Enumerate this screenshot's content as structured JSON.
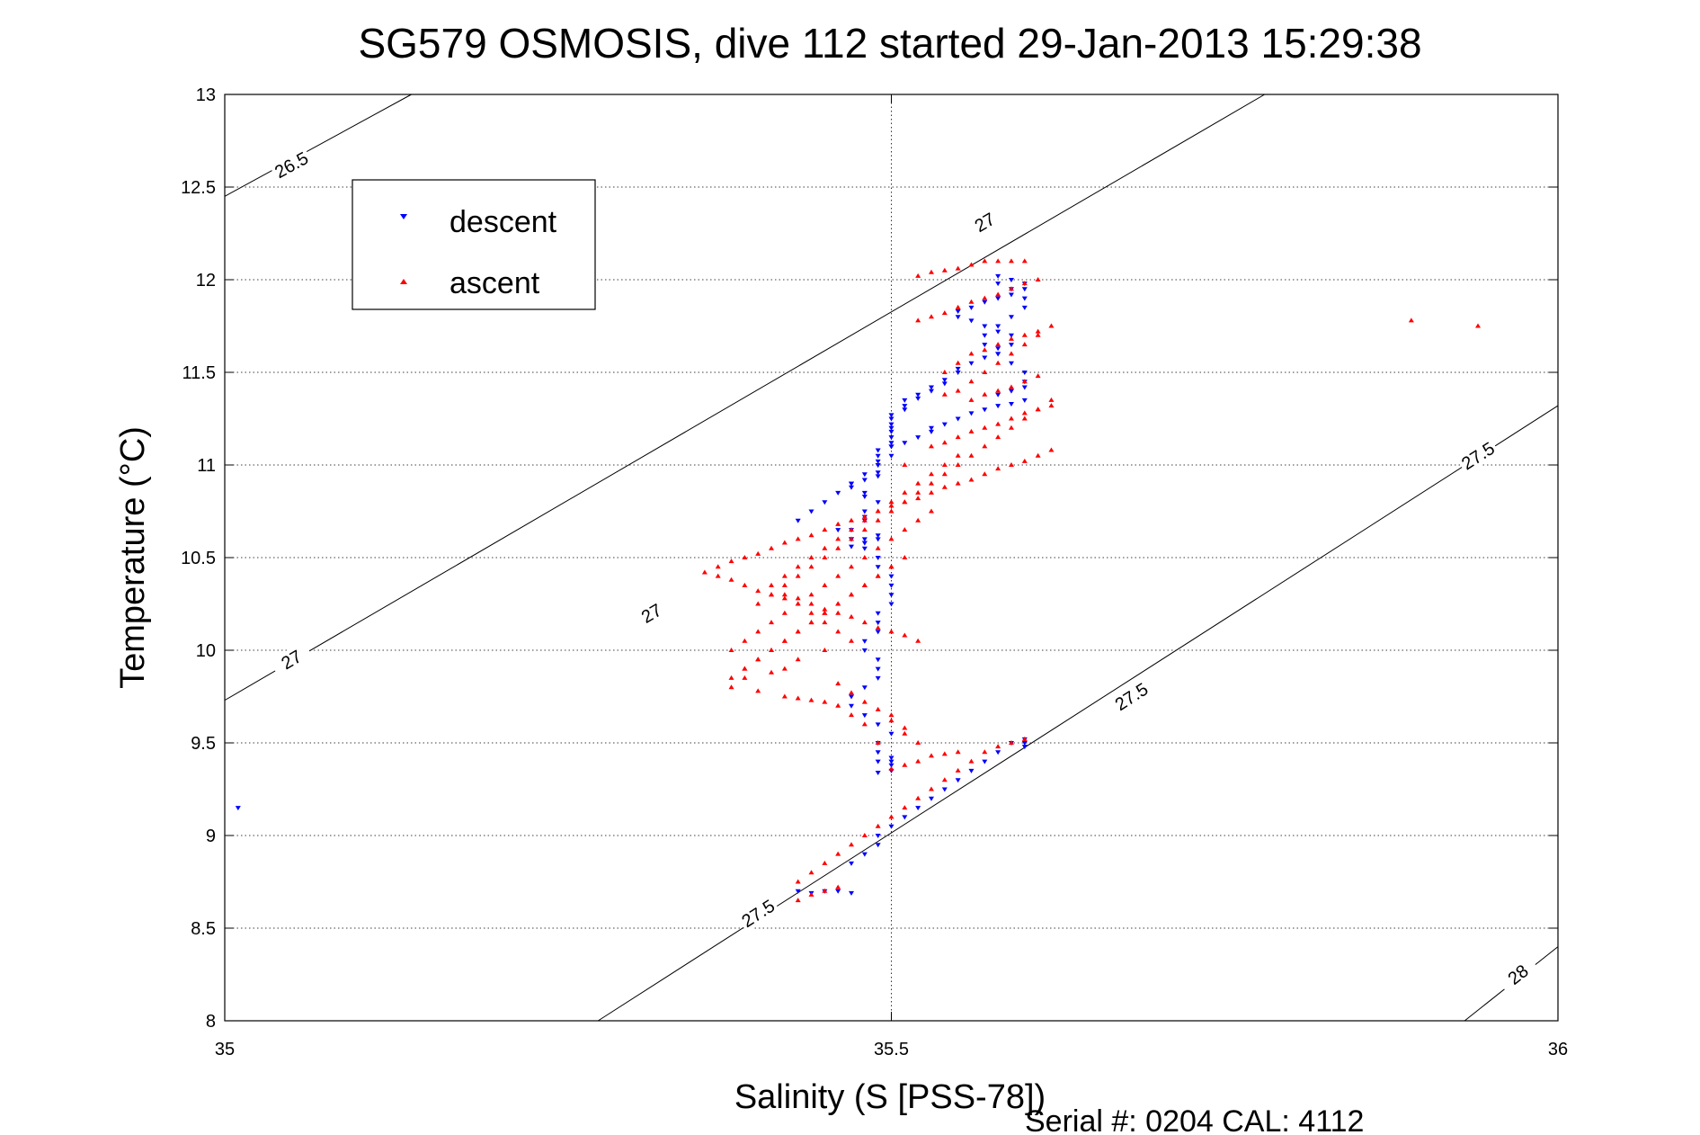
{
  "chart_data": {
    "type": "scatter",
    "title": "SG579 OSMOSIS, dive 112 started 29-Jan-2013 15:29:38",
    "xlabel": "Salinity (S [PSS-78])",
    "ylabel": "Temperature (°C)",
    "xlim": [
      35,
      36
    ],
    "ylim": [
      8,
      13
    ],
    "xticks": [
      35,
      35.5,
      36
    ],
    "xtick_labels": [
      "35",
      "35.5",
      "36"
    ],
    "yticks": [
      8,
      8.5,
      9,
      9.5,
      10,
      10.5,
      11,
      11.5,
      12,
      12.5,
      13
    ],
    "ytick_labels": [
      "8",
      "8.5",
      "9",
      "9.5",
      "10",
      "10.5",
      "11",
      "11.5",
      "12",
      "12.5",
      "13"
    ],
    "grid": true,
    "legend_position": "top-left",
    "footer": "Serial #: 0204  CAL: 4112",
    "isopycnals": [
      {
        "label": "26.5",
        "points": [
          [
            35,
            12.45
          ],
          [
            35.14,
            13
          ]
        ],
        "label_at": [
          [
            35.05,
            12.62
          ]
        ]
      },
      {
        "label": "27",
        "points": [
          [
            35,
            9.73
          ],
          [
            35.78,
            13
          ]
        ],
        "label_at": [
          [
            35.32,
            10.2
          ],
          [
            35.57,
            12.31
          ],
          [
            35.05,
            9.95
          ]
        ]
      },
      {
        "label": "27.5",
        "points": [
          [
            35.28,
            8
          ],
          [
            36,
            11.32
          ]
        ],
        "label_at": [
          [
            35.4,
            8.58
          ],
          [
            35.68,
            9.75
          ],
          [
            35.94,
            11.05
          ]
        ]
      },
      {
        "label": "28",
        "points": [
          [
            35.93,
            8
          ],
          [
            36,
            8.4
          ]
        ],
        "label_at": [
          [
            35.97,
            8.25
          ]
        ]
      }
    ],
    "series": [
      {
        "name": "descent",
        "color": "#0000ff",
        "marker": "triangle-down",
        "x": [
          35.01,
          35.43,
          35.44,
          35.45,
          35.46,
          35.47,
          35.47,
          35.48,
          35.49,
          35.49,
          35.5,
          35.51,
          35.52,
          35.53,
          35.54,
          35.55,
          35.56,
          35.57,
          35.58,
          35.59,
          35.6,
          35.6,
          35.6,
          35.5,
          35.5,
          35.5,
          35.5,
          35.49,
          35.49,
          35.49,
          35.49,
          35.5,
          35.49,
          35.48,
          35.47,
          35.47,
          35.48,
          35.49,
          35.49,
          35.49,
          35.48,
          35.48,
          35.49,
          35.49,
          35.49,
          35.5,
          35.5,
          35.5,
          35.5,
          35.49,
          35.49,
          35.48,
          35.48,
          35.49,
          35.49,
          35.48,
          35.48,
          35.47,
          35.47,
          35.47,
          35.48,
          35.48,
          35.48,
          35.49,
          35.48,
          35.48,
          35.47,
          35.47,
          35.48,
          35.49,
          35.49,
          35.49,
          35.49,
          35.49,
          35.49,
          35.5,
          35.5,
          35.5,
          35.5,
          35.5,
          35.5,
          35.5,
          35.5,
          35.51,
          35.51,
          35.51,
          35.52,
          35.52,
          35.53,
          35.53,
          35.54,
          35.54,
          35.55,
          35.55,
          35.56,
          35.57,
          35.58,
          35.58,
          35.59,
          35.59,
          35.58,
          35.57,
          35.56,
          35.55,
          35.55,
          35.56,
          35.57,
          35.58,
          35.59,
          35.6,
          35.6,
          35.59,
          35.58,
          35.58,
          35.59,
          35.6,
          35.6,
          35.59,
          35.58,
          35.57,
          35.57,
          35.58,
          35.59,
          35.6,
          35.6,
          35.6,
          35.59,
          35.58,
          35.6,
          35.59,
          35.58,
          35.57,
          35.56,
          35.55,
          35.54,
          35.53,
          35.53,
          35.52,
          35.51,
          35.5,
          35.5,
          35.49,
          35.48,
          35.47,
          35.46,
          35.45,
          35.44,
          35.43,
          35.46,
          35.47
        ],
        "y": [
          9.15,
          8.7,
          8.69,
          8.7,
          8.7,
          8.69,
          8.85,
          8.9,
          8.95,
          9.0,
          9.05,
          9.1,
          9.15,
          9.2,
          9.25,
          9.3,
          9.35,
          9.4,
          9.45,
          9.5,
          9.52,
          9.5,
          9.48,
          9.42,
          9.4,
          9.38,
          9.35,
          9.34,
          9.4,
          9.45,
          9.5,
          9.55,
          9.6,
          9.65,
          9.7,
          9.75,
          9.8,
          9.85,
          9.9,
          9.95,
          10.0,
          10.05,
          10.1,
          10.15,
          10.2,
          10.25,
          10.3,
          10.35,
          10.4,
          10.45,
          10.5,
          10.55,
          10.58,
          10.6,
          10.62,
          10.6,
          10.58,
          10.56,
          10.6,
          10.65,
          10.7,
          10.72,
          10.75,
          10.8,
          10.83,
          10.85,
          10.88,
          10.9,
          10.92,
          10.94,
          10.96,
          11.0,
          11.02,
          11.05,
          11.08,
          11.1,
          11.12,
          11.15,
          11.18,
          11.2,
          11.22,
          11.25,
          11.27,
          11.3,
          11.32,
          11.35,
          11.36,
          11.38,
          11.4,
          11.42,
          11.44,
          11.46,
          11.5,
          11.52,
          11.55,
          11.58,
          11.6,
          11.63,
          11.65,
          11.7,
          11.72,
          11.75,
          11.78,
          11.8,
          11.83,
          11.85,
          11.88,
          11.9,
          11.92,
          11.95,
          11.98,
          12.0,
          12.02,
          11.98,
          11.95,
          11.9,
          11.85,
          11.8,
          11.75,
          11.7,
          11.65,
          11.6,
          11.55,
          11.5,
          11.45,
          11.42,
          11.4,
          11.38,
          11.35,
          11.33,
          11.32,
          11.3,
          11.28,
          11.25,
          11.22,
          11.2,
          11.18,
          11.15,
          11.12,
          11.1,
          11.05,
          11.0,
          10.95,
          10.9,
          10.85,
          10.8,
          10.75,
          10.7,
          10.65,
          10.6
        ]
      },
      {
        "name": "ascent",
        "color": "#ff0000",
        "marker": "triangle-up",
        "x": [
          35.89,
          35.94,
          35.43,
          35.44,
          35.45,
          35.46,
          35.43,
          35.44,
          35.45,
          35.46,
          35.47,
          35.48,
          35.49,
          35.5,
          35.51,
          35.52,
          35.53,
          35.54,
          35.55,
          35.56,
          35.57,
          35.58,
          35.59,
          35.6,
          35.55,
          35.54,
          35.53,
          35.52,
          35.51,
          35.5,
          35.49,
          35.48,
          35.47,
          35.46,
          35.45,
          35.44,
          35.43,
          35.42,
          35.4,
          35.38,
          35.39,
          35.41,
          35.42,
          35.43,
          35.45,
          35.46,
          35.47,
          35.48,
          35.49,
          35.5,
          35.5,
          35.51,
          35.51,
          35.52,
          35.47,
          35.46,
          35.45,
          35.44,
          35.43,
          35.42,
          35.41,
          35.4,
          35.39,
          35.38,
          35.37,
          35.36,
          35.37,
          35.38,
          35.39,
          35.4,
          35.41,
          35.42,
          35.43,
          35.44,
          35.45,
          35.46,
          35.47,
          35.48,
          35.49,
          35.5,
          35.51,
          35.52,
          35.53,
          35.54,
          35.55,
          35.56,
          35.57,
          35.58,
          35.59,
          35.6,
          35.61,
          35.62,
          35.41,
          35.42,
          35.43,
          35.44,
          35.45,
          35.46,
          35.47,
          35.48,
          35.49,
          35.5,
          35.51,
          35.52,
          35.53,
          35.54,
          35.55,
          35.56,
          35.57,
          35.58,
          35.59,
          35.6,
          35.61,
          35.62,
          35.42,
          35.43,
          35.44,
          35.45,
          35.46,
          35.47,
          35.48,
          35.49,
          35.5,
          35.51,
          35.52,
          35.53,
          35.54,
          35.55,
          35.56,
          35.57,
          35.58,
          35.59,
          35.6,
          35.61,
          35.38,
          35.39,
          35.4,
          35.41,
          35.42,
          35.43,
          35.44,
          35.45,
          35.46,
          35.47,
          35.48,
          35.49,
          35.5,
          35.51,
          35.52,
          35.53,
          35.54,
          35.55,
          35.56,
          35.57,
          35.58,
          35.59,
          35.6,
          35.61,
          35.62,
          35.39,
          35.4,
          35.41,
          35.42,
          35.43,
          35.44,
          35.45,
          35.46,
          35.47,
          35.48,
          35.49,
          35.5,
          35.51,
          35.52,
          35.53,
          35.54,
          35.55,
          35.56,
          35.57,
          35.58,
          35.59,
          35.6,
          35.61,
          35.38,
          35.39,
          35.4,
          35.41,
          35.42,
          35.43,
          35.44,
          35.45,
          35.46,
          35.47,
          35.48,
          35.49,
          35.5,
          35.51,
          35.52,
          35.53,
          35.54,
          35.55,
          35.56,
          35.57,
          35.58,
          35.59,
          35.6,
          35.4,
          35.41,
          35.42,
          35.43,
          35.44,
          35.45,
          35.46,
          35.47,
          35.48,
          35.49,
          35.5,
          35.51,
          35.52,
          35.53,
          35.54,
          35.55,
          35.56,
          35.57,
          35.58,
          35.59,
          35.6,
          35.61,
          35.62,
          35.54,
          35.55,
          35.56,
          35.57,
          35.58,
          35.59,
          35.6,
          35.61
        ],
        "y": [
          11.78,
          11.75,
          8.65,
          8.68,
          8.7,
          8.72,
          8.75,
          8.8,
          8.85,
          8.9,
          8.95,
          9.0,
          9.05,
          9.1,
          9.15,
          9.2,
          9.25,
          9.3,
          9.35,
          9.4,
          9.45,
          9.48,
          9.5,
          9.52,
          9.45,
          9.44,
          9.43,
          9.4,
          9.38,
          9.36,
          9.5,
          9.6,
          9.65,
          9.7,
          9.72,
          9.73,
          9.74,
          9.75,
          9.78,
          9.8,
          9.85,
          9.88,
          9.9,
          9.95,
          10.0,
          9.82,
          9.77,
          9.72,
          9.68,
          9.65,
          9.62,
          9.58,
          9.55,
          9.5,
          10.05,
          10.1,
          10.15,
          10.2,
          10.25,
          10.28,
          10.3,
          10.32,
          10.35,
          10.38,
          10.4,
          10.42,
          10.45,
          10.48,
          10.5,
          10.52,
          10.55,
          10.58,
          10.6,
          10.62,
          10.65,
          10.68,
          10.7,
          10.72,
          10.75,
          10.78,
          10.8,
          10.82,
          10.85,
          10.88,
          10.9,
          10.92,
          10.95,
          10.98,
          11.0,
          11.02,
          11.05,
          11.08,
          10.35,
          10.3,
          10.28,
          10.25,
          10.22,
          10.2,
          10.18,
          10.15,
          10.12,
          10.1,
          10.08,
          10.05,
          11.1,
          11.12,
          11.15,
          11.18,
          11.2,
          11.22,
          11.25,
          11.28,
          11.3,
          11.32,
          10.4,
          10.45,
          10.5,
          10.55,
          10.6,
          10.65,
          10.7,
          10.75,
          10.8,
          10.85,
          10.9,
          10.95,
          11.0,
          11.05,
          11.35,
          11.38,
          11.4,
          11.42,
          11.45,
          11.48,
          10.0,
          10.05,
          10.1,
          10.15,
          10.2,
          10.25,
          10.3,
          10.35,
          10.4,
          10.45,
          10.5,
          10.55,
          10.6,
          10.65,
          10.7,
          10.75,
          11.5,
          11.55,
          11.6,
          11.62,
          11.65,
          11.68,
          11.7,
          11.72,
          11.75,
          9.9,
          9.95,
          10.0,
          10.05,
          10.1,
          10.15,
          10.2,
          10.25,
          10.3,
          10.35,
          10.4,
          10.45,
          10.5,
          11.78,
          11.8,
          11.82,
          11.85,
          11.88,
          11.9,
          11.92,
          11.95,
          11.98,
          12.0,
          9.85,
          9.9,
          9.95,
          10.0,
          10.05,
          10.1,
          10.15,
          10.2,
          10.25,
          10.3,
          10.35,
          10.4,
          10.45,
          11.0,
          12.02,
          12.04,
          12.05,
          12.06,
          12.08,
          12.1,
          12.1,
          12.1,
          12.1,
          10.25,
          10.3,
          10.35,
          10.4,
          10.45,
          10.5,
          10.55,
          10.6,
          10.65,
          10.7,
          10.75,
          10.8,
          10.85,
          10.9,
          10.95,
          11.0,
          11.05,
          11.1,
          11.15,
          11.2,
          11.25,
          11.3,
          11.35,
          11.38,
          11.4,
          11.45,
          11.5,
          11.55,
          11.6,
          11.65,
          11.7
        ]
      }
    ]
  }
}
